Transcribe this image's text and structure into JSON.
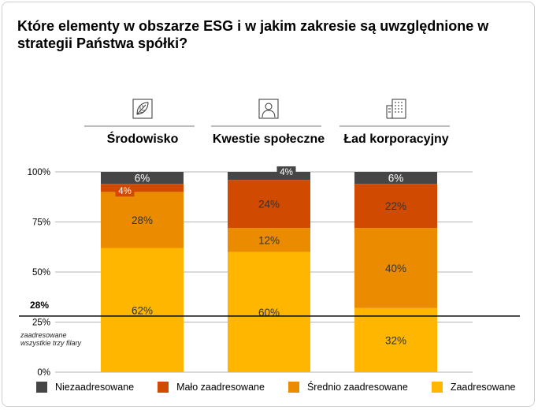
{
  "title": "Które elementy w obszarze ESG i w jakim zakresie są uwzględnione w strategii Państwa spółki?",
  "pillars": [
    {
      "label": "Środowisko",
      "icon": "leaf-icon"
    },
    {
      "label": "Kwestie społeczne",
      "icon": "person-icon"
    },
    {
      "label": "Ład korporacyjny",
      "icon": "building-icon"
    }
  ],
  "reference_line": {
    "value_label": "28%",
    "note": "zaadresowane wszystkie trzy filary",
    "value": 28
  },
  "chart_data": {
    "type": "bar",
    "stacked": true,
    "categories": [
      "Środowisko",
      "Kwestie społeczne",
      "Ład korporacyjny"
    ],
    "ylim": [
      0,
      100
    ],
    "yticks": [
      "0%",
      "25%",
      "50%",
      "75%",
      "100%"
    ],
    "series": [
      {
        "name": "Zaadresowane",
        "values": [
          62,
          60,
          32
        ],
        "labels": [
          "62%",
          "60%",
          "32%"
        ],
        "color": "#ffb600"
      },
      {
        "name": "Średnio zaadresowane",
        "values": [
          28,
          12,
          40
        ],
        "labels": [
          "28%",
          "12%",
          "40%"
        ],
        "color": "#eb8c00"
      },
      {
        "name": "Mało zaadresowane",
        "values": [
          4,
          24,
          22
        ],
        "labels": [
          "4%",
          "24%",
          "22%"
        ],
        "color": "#d04a02"
      },
      {
        "name": "Niezaadresowane",
        "values": [
          6,
          4,
          6
        ],
        "labels": [
          "6%",
          "4%",
          "6%"
        ],
        "color": "#464646"
      }
    ]
  },
  "legend": [
    {
      "label": "Niezaadresowane",
      "color": "#464646"
    },
    {
      "label": "Mało zaadresowane",
      "color": "#d04a02"
    },
    {
      "label": "Średnio zaadresowane",
      "color": "#eb8c00"
    },
    {
      "label": "Zaadresowane",
      "color": "#ffb600"
    }
  ]
}
